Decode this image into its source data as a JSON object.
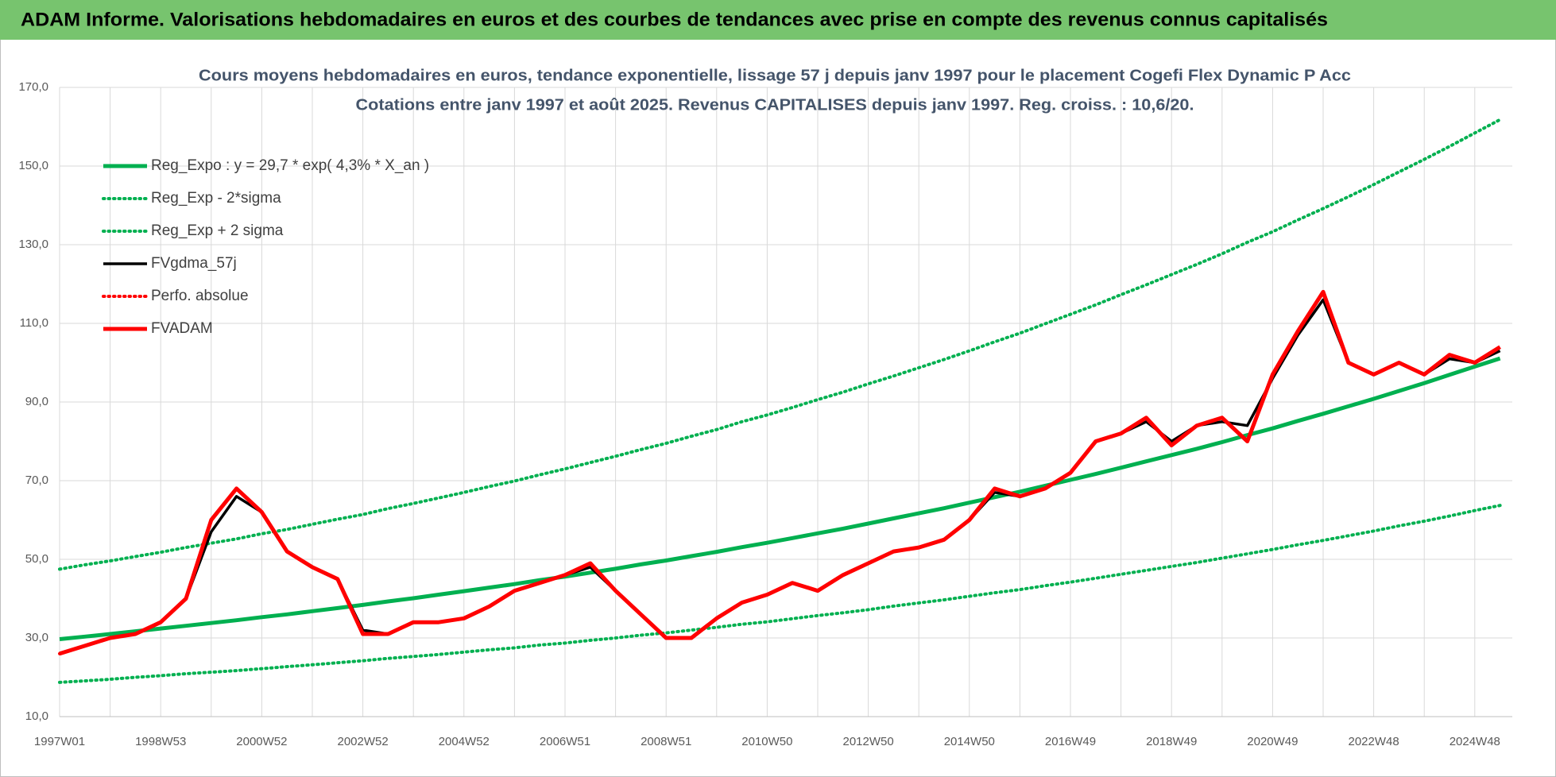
{
  "header": {
    "title": "ADAM Informe. Valorisations hebdomadaires en euros et des courbes de tendances avec prise en compte des revenus connus capitalisés"
  },
  "chart_data": {
    "type": "line",
    "title": "Cours moyens hebdomadaires en euros, tendance exponentielle, lissage 57 j depuis janv 1997 pour le placement Cogefi Flex Dynamic P Acc",
    "subtitle": "Cotations entre janv 1997 et août 2025. Revenus CAPITALISES depuis janv 1997. Reg. croiss. : 10,6/20.",
    "categories": [
      "1997W01",
      null,
      null,
      null,
      "1998W53",
      null,
      null,
      null,
      "2000W52",
      null,
      null,
      null,
      "2002W52",
      null,
      null,
      null,
      "2004W52",
      null,
      null,
      null,
      "2006W51",
      null,
      null,
      null,
      "2008W51",
      null,
      null,
      null,
      "2010W50",
      null,
      null,
      null,
      "2012W50",
      null,
      null,
      null,
      "2014W50",
      null,
      null,
      null,
      "2016W49",
      null,
      null,
      null,
      "2018W49",
      null,
      null,
      null,
      "2020W49",
      null,
      null,
      null,
      "2022W48",
      null,
      null,
      null,
      "2024W48",
      null
    ],
    "ylim": [
      10,
      170
    ],
    "yticks": [
      {
        "value": 10,
        "label": "10,0"
      },
      {
        "value": 30,
        "label": "30,0"
      },
      {
        "value": 50,
        "label": "50,0"
      },
      {
        "value": 70,
        "label": "70,0"
      },
      {
        "value": 90,
        "label": "90,0"
      },
      {
        "value": 110,
        "label": "110,0"
      },
      {
        "value": 130,
        "label": "130,0"
      },
      {
        "value": 150,
        "label": "150,0"
      },
      {
        "value": 170,
        "label": "170,0"
      }
    ],
    "grid": true,
    "legend": "upper-left",
    "series": [
      {
        "name": "Reg_Expo : y = 29,7 * exp( 4,3% *  X_an )",
        "color": "#00b050",
        "style": "solid",
        "values": [
          29.7,
          30.35,
          31.0,
          31.7,
          32.4,
          33.1,
          33.8,
          34.5,
          35.3,
          36.0,
          36.8,
          37.6,
          38.4,
          39.3,
          40.1,
          41.0,
          41.9,
          42.8,
          43.7,
          44.7,
          45.6,
          46.6,
          47.6,
          48.7,
          49.7,
          50.8,
          51.9,
          53.1,
          54.2,
          55.4,
          56.6,
          57.8,
          59.1,
          60.4,
          61.7,
          63.0,
          64.4,
          65.8,
          67.2,
          68.7,
          70.2,
          71.7,
          73.3,
          74.9,
          76.5,
          78.1,
          79.8,
          81.6,
          83.3,
          85.2,
          87.0,
          88.9,
          90.8,
          92.8,
          94.8,
          96.9,
          99.0,
          101.1
        ]
      },
      {
        "name": "Reg_Exp - 2*sigma",
        "color": "#00b050",
        "style": "dotted",
        "values": [
          18.7,
          19.1,
          19.5,
          20.0,
          20.4,
          20.9,
          21.3,
          21.7,
          22.2,
          22.7,
          23.2,
          23.7,
          24.2,
          24.8,
          25.3,
          25.8,
          26.4,
          27.0,
          27.5,
          28.2,
          28.7,
          29.4,
          30.0,
          30.7,
          31.3,
          32.0,
          32.7,
          33.5,
          34.1,
          34.9,
          35.7,
          36.4,
          37.2,
          38.1,
          38.9,
          39.7,
          40.6,
          41.5,
          42.3,
          43.3,
          44.2,
          45.2,
          46.2,
          47.2,
          48.2,
          49.2,
          50.3,
          51.4,
          52.5,
          53.7,
          54.8,
          56.0,
          57.2,
          58.5,
          59.7,
          61.0,
          62.4,
          63.7
        ]
      },
      {
        "name": "Reg_Exp + 2 sigma",
        "color": "#00b050",
        "style": "dotted",
        "values": [
          47.5,
          48.6,
          49.6,
          50.7,
          51.8,
          53.0,
          54.1,
          55.2,
          56.5,
          57.6,
          58.9,
          60.2,
          61.4,
          62.9,
          64.2,
          65.6,
          67.0,
          68.5,
          69.9,
          71.5,
          73.0,
          74.6,
          76.2,
          77.9,
          79.5,
          81.3,
          83.0,
          85.0,
          86.7,
          88.6,
          90.6,
          92.5,
          94.6,
          96.6,
          98.7,
          100.8,
          103.0,
          105.3,
          107.5,
          109.9,
          112.3,
          114.7,
          117.3,
          119.8,
          122.4,
          125.0,
          127.7,
          130.6,
          133.3,
          136.3,
          139.2,
          142.2,
          145.3,
          148.5,
          151.7,
          155.0,
          158.4,
          161.8
        ]
      },
      {
        "name": "FVgdma_57j",
        "color": "#000000",
        "style": "solid",
        "values": [
          26,
          28,
          30,
          31,
          34,
          40,
          57,
          66,
          62,
          52,
          48,
          45,
          32,
          31,
          34,
          34,
          35,
          38,
          42,
          44,
          46,
          48,
          42,
          36,
          30,
          30,
          35,
          39,
          41,
          44,
          42,
          46,
          49,
          52,
          53,
          55,
          60,
          67,
          66,
          68,
          72,
          80,
          82,
          85,
          80,
          84,
          85,
          84,
          96,
          107,
          116,
          100,
          97,
          100,
          97,
          101,
          100,
          103
        ]
      },
      {
        "name": "Perfo. absolue",
        "color": "#ff0000",
        "style": "dotted",
        "values": [
          26,
          28,
          30,
          31,
          34,
          40,
          60,
          68,
          62,
          52,
          48,
          45,
          31,
          31,
          34,
          34,
          35,
          38,
          42,
          44,
          46,
          49,
          42,
          36,
          30,
          30,
          35,
          39,
          41,
          44,
          42,
          46,
          49,
          52,
          53,
          55,
          60,
          68,
          66,
          68,
          72,
          80,
          82,
          86,
          79,
          84,
          86,
          80,
          97,
          108,
          118,
          100,
          97,
          100,
          97,
          102,
          100,
          104
        ]
      },
      {
        "name": "FVADAM",
        "color": "#ff0000",
        "style": "solid",
        "values": [
          26,
          28,
          30,
          31,
          34,
          40,
          60,
          68,
          62,
          52,
          48,
          45,
          31,
          31,
          34,
          34,
          35,
          38,
          42,
          44,
          46,
          49,
          42,
          36,
          30,
          30,
          35,
          39,
          41,
          44,
          42,
          46,
          49,
          52,
          53,
          55,
          60,
          68,
          66,
          68,
          72,
          80,
          82,
          86,
          79,
          84,
          86,
          80,
          97,
          108,
          118,
          100,
          97,
          100,
          97,
          102,
          100,
          104
        ]
      }
    ]
  }
}
